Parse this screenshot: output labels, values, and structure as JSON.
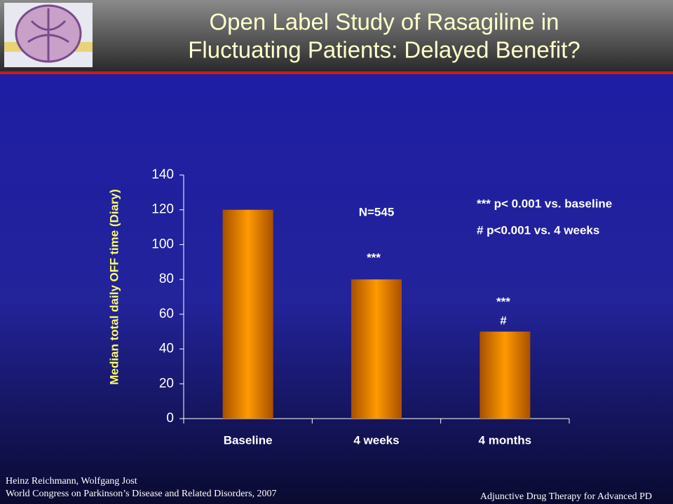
{
  "chart_data": {
    "type": "bar",
    "title": [
      "Open Label Study of Rasagiline in",
      "Fluctuating Patients: Delayed Benefit?"
    ],
    "y_label": "Median total daily OFF time (Diary)",
    "categories": [
      "Baseline",
      "4 weeks",
      "4 months"
    ],
    "values": [
      120,
      80,
      50
    ],
    "color": "#ff9900",
    "ylim": [
      0,
      140
    ],
    "yticks": [
      0,
      20,
      40,
      60,
      80,
      100,
      120,
      140
    ],
    "grid": false,
    "annotations": [
      "N=545",
      "***",
      "***",
      "#",
      "*** p< 0.001 vs. baseline",
      "# p<0.001 vs. 4 weeks"
    ]
  },
  "footer": {
    "authors": "Heinz Reichmann, Wolfgang Jost",
    "venue": "World Congress on Parkinson’s Disease and Related Disorders, 2007",
    "series_title": "Adjunctive Drug Therapy for Advanced PD"
  }
}
